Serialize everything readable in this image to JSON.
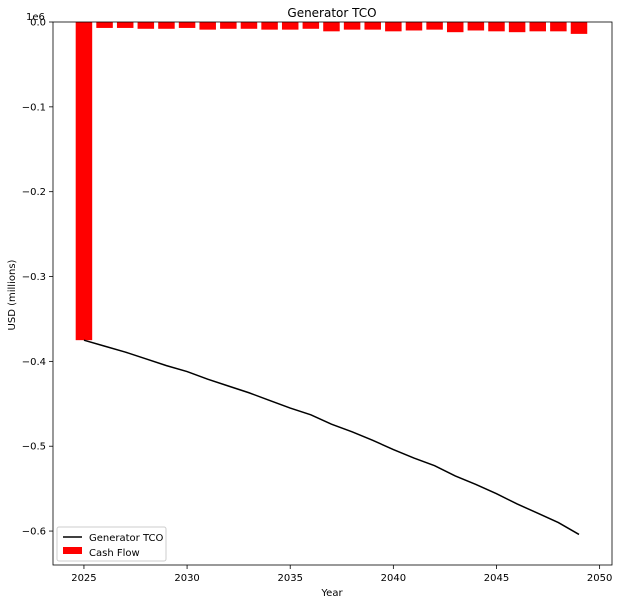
{
  "chart_data": {
    "type": "bar+line",
    "title": "Generator TCO",
    "xlabel": "Year",
    "ylabel": "USD (millions)",
    "y_offset_label": "1e6",
    "xlim": [
      2023.5,
      2050.6
    ],
    "ylim": [
      -0.64,
      0.0
    ],
    "x_ticks": [
      2025,
      2030,
      2035,
      2040,
      2045,
      2050
    ],
    "y_ticks": [
      0.0,
      -0.1,
      -0.2,
      -0.3,
      -0.4,
      -0.5,
      -0.6
    ],
    "y_tick_labels": [
      "0.0",
      "−0.1",
      "−0.2",
      "−0.3",
      "−0.4",
      "−0.5",
      "−0.6"
    ],
    "grid": false,
    "legend_position": "lower-left",
    "colors": {
      "bars": "#ff0000",
      "line": "#000000"
    },
    "series": [
      {
        "name": "Cash Flow",
        "type": "bar",
        "x": [
          2025,
          2026,
          2027,
          2028,
          2029,
          2030,
          2031,
          2032,
          2033,
          2034,
          2035,
          2036,
          2037,
          2038,
          2039,
          2040,
          2041,
          2042,
          2043,
          2044,
          2045,
          2046,
          2047,
          2048,
          2049
        ],
        "values": [
          -0.375,
          -0.007,
          -0.007,
          -0.008,
          -0.008,
          -0.007,
          -0.009,
          -0.008,
          -0.008,
          -0.009,
          -0.009,
          -0.008,
          -0.011,
          -0.009,
          -0.009,
          -0.011,
          -0.01,
          -0.009,
          -0.012,
          -0.01,
          -0.011,
          -0.012,
          -0.011,
          -0.011,
          -0.014
        ]
      },
      {
        "name": "Generator TCO",
        "type": "line",
        "x": [
          2025,
          2026,
          2027,
          2028,
          2029,
          2030,
          2031,
          2032,
          2033,
          2034,
          2035,
          2036,
          2037,
          2038,
          2039,
          2040,
          2041,
          2042,
          2043,
          2044,
          2045,
          2046,
          2047,
          2048,
          2049
        ],
        "values": [
          -0.375,
          -0.382,
          -0.389,
          -0.397,
          -0.405,
          -0.412,
          -0.421,
          -0.429,
          -0.437,
          -0.446,
          -0.455,
          -0.463,
          -0.474,
          -0.483,
          -0.493,
          -0.504,
          -0.514,
          -0.523,
          -0.535,
          -0.545,
          -0.556,
          -0.568,
          -0.579,
          -0.59,
          -0.604
        ]
      }
    ]
  }
}
